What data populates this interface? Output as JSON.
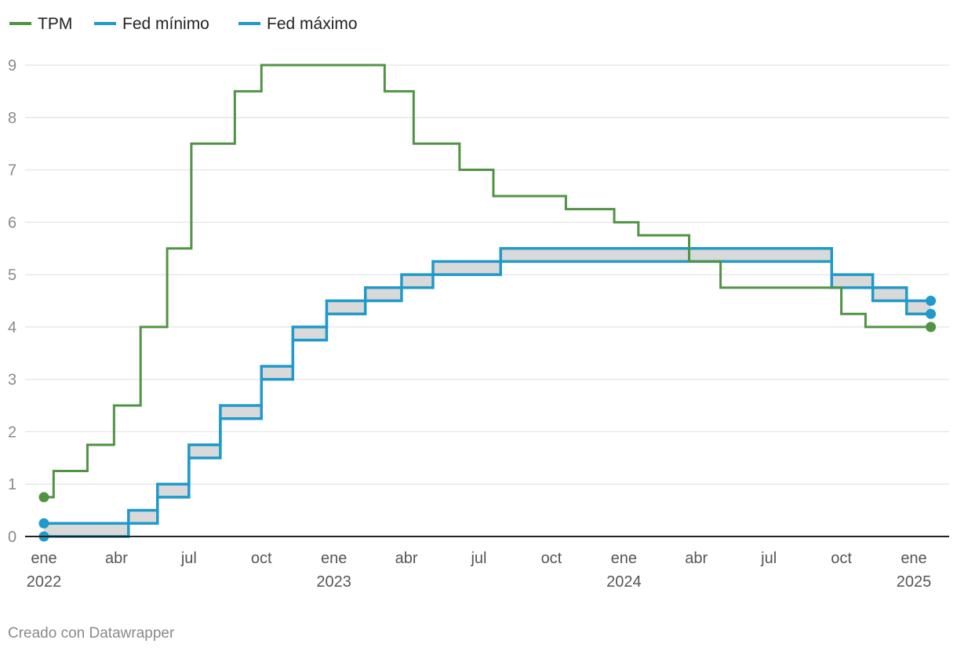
{
  "chart_data": {
    "type": "line",
    "title": "",
    "xlabel": "",
    "ylabel": "",
    "ylim": [
      0,
      9
    ],
    "yticks": [
      0,
      1,
      2,
      3,
      4,
      5,
      6,
      7,
      8,
      9
    ],
    "x_range": [
      "2022-01",
      "2025-01"
    ],
    "grid": true,
    "legend_position": "top-left",
    "xticks": [
      {
        "month": "2022-01",
        "label": "ene",
        "year": "2022"
      },
      {
        "month": "2022-04",
        "label": "abr"
      },
      {
        "month": "2022-07",
        "label": "jul"
      },
      {
        "month": "2022-10",
        "label": "oct"
      },
      {
        "month": "2023-01",
        "label": "ene",
        "year": "2023"
      },
      {
        "month": "2023-04",
        "label": "abr"
      },
      {
        "month": "2023-07",
        "label": "jul"
      },
      {
        "month": "2023-10",
        "label": "oct"
      },
      {
        "month": "2024-01",
        "label": "ene",
        "year": "2024"
      },
      {
        "month": "2024-04",
        "label": "abr"
      },
      {
        "month": "2024-07",
        "label": "jul"
      },
      {
        "month": "2024-10",
        "label": "oct"
      },
      {
        "month": "2025-01",
        "label": "ene",
        "year": "2025"
      }
    ],
    "series": [
      {
        "name": "TPM",
        "color": "#4f9443",
        "step": true,
        "points": [
          [
            "2022-01",
            0.75
          ],
          [
            "2022-01.4",
            1.25
          ],
          [
            "2022-02.8",
            1.75
          ],
          [
            "2022-03.9",
            2.5
          ],
          [
            "2022-05.0",
            4.0
          ],
          [
            "2022-06.1",
            5.5
          ],
          [
            "2022-07.1",
            7.5
          ],
          [
            "2022-08.9",
            8.5
          ],
          [
            "2022-10.0",
            9.0
          ],
          [
            "2023-03.1",
            8.5
          ],
          [
            "2023-04.3",
            7.5
          ],
          [
            "2023-06.2",
            7.0
          ],
          [
            "2023-07.6",
            6.5
          ],
          [
            "2023-10.6",
            6.25
          ],
          [
            "2023-12.6",
            6.0
          ],
          [
            "2024-01.6",
            5.75
          ],
          [
            "2024-03.7",
            5.25
          ],
          [
            "2024-05.0",
            4.75
          ],
          [
            "2024-10.0",
            4.25
          ],
          [
            "2024-11.0",
            4.0
          ],
          [
            "2025-01.7",
            4.0
          ]
        ]
      },
      {
        "name": "Fed mínimo",
        "color": "#1f9ac9",
        "step": true,
        "points": [
          [
            "2022-01",
            0.0
          ],
          [
            "2022-04.5",
            0.25
          ],
          [
            "2022-05.7",
            0.75
          ],
          [
            "2022-07.0",
            1.5
          ],
          [
            "2022-08.3",
            2.25
          ],
          [
            "2022-10.0",
            3.0
          ],
          [
            "2022-11.3",
            3.75
          ],
          [
            "2022-12.7",
            4.25
          ],
          [
            "2023-02.3",
            4.5
          ],
          [
            "2023-03.8",
            4.75
          ],
          [
            "2023-05.1",
            5.0
          ],
          [
            "2023-07.9",
            5.25
          ],
          [
            "2024-09.6",
            4.75
          ],
          [
            "2024-11.3",
            4.5
          ],
          [
            "2024-12.7",
            4.25
          ],
          [
            "2025-01.7",
            4.25
          ]
        ]
      },
      {
        "name": "Fed máximo",
        "color": "#1f9ac9",
        "step": true,
        "points": [
          [
            "2022-01",
            0.25
          ],
          [
            "2022-04.5",
            0.5
          ],
          [
            "2022-05.7",
            1.0
          ],
          [
            "2022-07.0",
            1.75
          ],
          [
            "2022-08.3",
            2.5
          ],
          [
            "2022-10.0",
            3.25
          ],
          [
            "2022-11.3",
            4.0
          ],
          [
            "2022-12.7",
            4.5
          ],
          [
            "2023-02.3",
            4.75
          ],
          [
            "2023-03.8",
            5.0
          ],
          [
            "2023-05.1",
            5.25
          ],
          [
            "2023-07.9",
            5.5
          ],
          [
            "2024-09.6",
            5.0
          ],
          [
            "2024-11.3",
            4.75
          ],
          [
            "2024-12.7",
            4.5
          ],
          [
            "2025-01.7",
            4.5
          ]
        ]
      }
    ],
    "band": {
      "between": [
        "Fed mínimo",
        "Fed máximo"
      ],
      "fill": "#d9d9d9"
    }
  },
  "legend": [
    {
      "label": "TPM",
      "color": "#4f9443"
    },
    {
      "label": "Fed mínimo",
      "color": "#1f9ac9"
    },
    {
      "label": "Fed máximo",
      "color": "#1f9ac9"
    }
  ],
  "credit": "Creado con Datawrapper"
}
